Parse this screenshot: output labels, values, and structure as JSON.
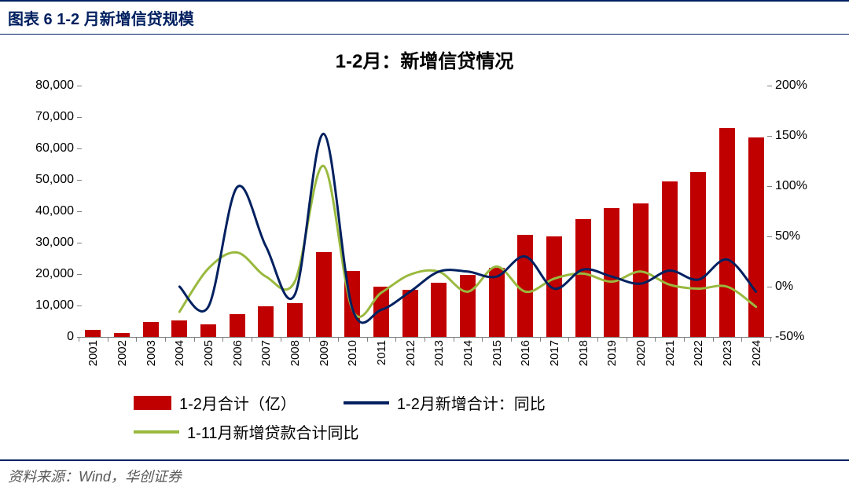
{
  "header": {
    "title": "图表 6  1-2 月新增信贷规模"
  },
  "chart": {
    "type": "bar+line-dual-axis",
    "title": "1-2月：新增信贷情况",
    "categories": [
      "2001",
      "2002",
      "2003",
      "2004",
      "2005",
      "2006",
      "2007",
      "2008",
      "2009",
      "2010",
      "2011",
      "2012",
      "2013",
      "2014",
      "2015",
      "2016",
      "2017",
      "2018",
      "2019",
      "2020",
      "2021",
      "2022",
      "2023",
      "2024"
    ],
    "bars": {
      "label": "1-2月合计（亿）",
      "color": "#c00000",
      "values": [
        2200,
        1200,
        4800,
        5200,
        4000,
        7200,
        9800,
        10800,
        27000,
        21000,
        16000,
        15000,
        17200,
        19800,
        22000,
        32400,
        32000,
        37500,
        41000,
        42500,
        49500,
        52500,
        66500,
        63500
      ]
    },
    "line1": {
      "label": "1-2月新增合计：同比",
      "color": "#002060",
      "width": 3,
      "values": [
        null,
        null,
        null,
        0,
        -20,
        99,
        40,
        -8,
        152,
        -22,
        -23,
        -5,
        15,
        15,
        10,
        30,
        -2,
        17,
        10,
        3,
        16,
        7,
        27,
        -5
      ]
    },
    "line2": {
      "label": "1-11月新增贷款合计同比",
      "color": "#99b93e",
      "width": 3,
      "values": [
        null,
        null,
        null,
        -25,
        18,
        34,
        10,
        5,
        120,
        -23,
        -6,
        12,
        15,
        -5,
        20,
        -5,
        8,
        13,
        5,
        15,
        2,
        -2,
        0,
        -20
      ]
    },
    "left_axis": {
      "min": 0,
      "max": 80000,
      "step": 10000,
      "ticks": [
        "0",
        "10,000",
        "20,000",
        "30,000",
        "40,000",
        "50,000",
        "60,000",
        "70,000",
        "80,000"
      ]
    },
    "right_axis": {
      "min": -50,
      "max": 200,
      "step": 50,
      "ticks": [
        "-50%",
        "0%",
        "50%",
        "100%",
        "150%",
        "200%"
      ]
    },
    "background_color": "#ffffff",
    "axis_color": "#7f7f7f",
    "bar_width_ratio": 0.55,
    "label_fontsize": 16,
    "title_fontsize": 24
  },
  "footer": {
    "source": "资料来源：Wind，华创证券"
  }
}
